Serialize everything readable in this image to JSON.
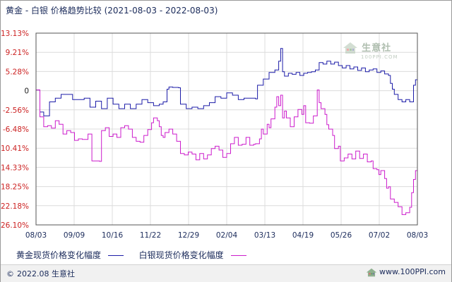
{
  "title": "黄金 - 白银 价格趋势比较 (2021-08-03 - 2022-08-03)",
  "legend": {
    "gold": "黄金现货价格变化幅度",
    "silver": "白银现货价格变化幅度"
  },
  "footer": {
    "copyright": "2022.08 生意社",
    "site": "www.100PPI.com"
  },
  "watermark": {
    "brand": "生意社",
    "url": "100PPI.COM"
  },
  "colors": {
    "gold": "#1c1ca8",
    "silver": "#cc1ccc",
    "ytick": "#cc2222",
    "zero_tick": "#222222",
    "grid": "#dcdcdc",
    "axis": "#555555"
  },
  "chart_data": {
    "type": "line",
    "x_ticks": [
      "08/03",
      "09/09",
      "10/16",
      "11/22",
      "12/29",
      "02/04",
      "03/13",
      "04/19",
      "05/26",
      "07/02",
      "08/03"
    ],
    "y_ticks": [
      "13.13%",
      "9.21%",
      "5.28%",
      "0",
      "-2.56%",
      "-6.48%",
      "-10.41%",
      "-14.33%",
      "-18.25%",
      "-22.18%",
      "-26.10%"
    ],
    "ylim": [
      -26.1,
      13.13
    ],
    "grid": true,
    "legend_position": "bottom",
    "series": [
      {
        "name": "黄金现货价格变化幅度",
        "points": [
          [
            0,
            0.2
          ],
          [
            2,
            -3.0
          ],
          [
            4,
            -3.8
          ],
          [
            7,
            -1.5
          ],
          [
            10,
            -1.0
          ],
          [
            13,
            -0.5
          ],
          [
            16,
            -0.5
          ],
          [
            19,
            -1.2
          ],
          [
            22,
            -1.2
          ],
          [
            25,
            -1.0
          ],
          [
            28,
            -2.2
          ],
          [
            31,
            -1.4
          ],
          [
            34,
            -2.4
          ],
          [
            37,
            -1.0
          ],
          [
            40,
            -1.8
          ],
          [
            43,
            -2.4
          ],
          [
            46,
            -1.8
          ],
          [
            49,
            -2.4
          ],
          [
            52,
            -1.8
          ],
          [
            55,
            -1.2
          ],
          [
            58,
            -1.6
          ],
          [
            61,
            -2.0
          ],
          [
            64,
            -1.8
          ],
          [
            66,
            -1.5
          ],
          [
            68,
            0.4
          ],
          [
            69,
            1.0
          ],
          [
            71,
            0.9
          ],
          [
            74,
            0.8
          ],
          [
            75,
            -1.8
          ],
          [
            78,
            -2.4
          ],
          [
            81,
            -2.2
          ],
          [
            84,
            -2.4
          ],
          [
            87,
            -2.0
          ],
          [
            90,
            -1.6
          ],
          [
            93,
            -0.8
          ],
          [
            96,
            -1.0
          ],
          [
            99,
            -0.3
          ],
          [
            102,
            -0.6
          ],
          [
            105,
            -1.2
          ],
          [
            108,
            -1.0
          ],
          [
            111,
            -1.0
          ],
          [
            114,
            -1.1
          ],
          [
            115,
            1.5
          ],
          [
            118,
            3.2
          ],
          [
            121,
            5.0
          ],
          [
            124,
            5.6
          ],
          [
            126,
            7.4
          ],
          [
            127,
            10.0
          ],
          [
            128,
            5.2
          ],
          [
            129,
            4.0
          ],
          [
            131,
            4.8
          ],
          [
            133,
            4.5
          ],
          [
            135,
            5.0
          ],
          [
            137,
            4.2
          ],
          [
            139,
            4.8
          ],
          [
            141,
            5.0
          ],
          [
            143,
            5.2
          ],
          [
            145,
            5.6
          ],
          [
            147,
            7.1
          ],
          [
            149,
            6.8
          ],
          [
            151,
            7.4
          ],
          [
            153,
            6.8
          ],
          [
            155,
            7.2
          ],
          [
            157,
            6.5
          ],
          [
            159,
            6.0
          ],
          [
            161,
            6.5
          ],
          [
            163,
            5.8
          ],
          [
            165,
            6.2
          ],
          [
            167,
            5.5
          ],
          [
            169,
            6.0
          ],
          [
            171,
            5.2
          ],
          [
            173,
            5.6
          ],
          [
            175,
            5.8
          ],
          [
            177,
            5.0
          ],
          [
            179,
            5.4
          ],
          [
            181,
            4.6
          ],
          [
            183,
            4.2
          ],
          [
            184,
            2.0
          ],
          [
            185,
            0.4
          ],
          [
            186,
            -0.5
          ],
          [
            188,
            -1.2
          ],
          [
            190,
            -1.5
          ],
          [
            192,
            -1.2
          ],
          [
            194,
            -1.5
          ],
          [
            196,
            1.5
          ],
          [
            197,
            3.0
          ],
          [
            198,
            1.7
          ]
        ]
      },
      {
        "name": "白银现货价格变化幅度",
        "points": [
          [
            0,
            0.2
          ],
          [
            2,
            -4.0
          ],
          [
            4,
            -6.0
          ],
          [
            6,
            -5.8
          ],
          [
            8,
            -6.3
          ],
          [
            10,
            -4.8
          ],
          [
            12,
            -5.5
          ],
          [
            14,
            -7.5
          ],
          [
            16,
            -6.8
          ],
          [
            18,
            -7.2
          ],
          [
            20,
            -8.8
          ],
          [
            22,
            -8.5
          ],
          [
            24,
            -8.6
          ],
          [
            27,
            -7.5
          ],
          [
            29,
            -13.0
          ],
          [
            31,
            -13.0
          ],
          [
            33,
            -13.1
          ],
          [
            34,
            -6.8
          ],
          [
            36,
            -6.2
          ],
          [
            38,
            -8.0
          ],
          [
            40,
            -7.5
          ],
          [
            42,
            -8.2
          ],
          [
            44,
            -6.2
          ],
          [
            46,
            -5.8
          ],
          [
            48,
            -6.5
          ],
          [
            50,
            -8.2
          ],
          [
            52,
            -9.0
          ],
          [
            54,
            -9.2
          ],
          [
            56,
            -7.8
          ],
          [
            58,
            -6.6
          ],
          [
            60,
            -5.2
          ],
          [
            61,
            -4.2
          ],
          [
            63,
            -4.8
          ],
          [
            64,
            -6.0
          ],
          [
            65,
            -7.8
          ],
          [
            66,
            -8.2
          ],
          [
            67,
            -7.2
          ],
          [
            69,
            -6.5
          ],
          [
            71,
            -7.5
          ],
          [
            73,
            -9.0
          ],
          [
            75,
            -11.5
          ],
          [
            77,
            -11.8
          ],
          [
            79,
            -11.2
          ],
          [
            81,
            -11.6
          ],
          [
            83,
            -12.8
          ],
          [
            85,
            -11.5
          ],
          [
            87,
            -12.6
          ],
          [
            89,
            -11.8
          ],
          [
            91,
            -10.5
          ],
          [
            93,
            -10.0
          ],
          [
            95,
            -10.8
          ],
          [
            97,
            -12.3
          ],
          [
            99,
            -11.5
          ],
          [
            101,
            -9.5
          ],
          [
            103,
            -8.2
          ],
          [
            105,
            -9.8
          ],
          [
            107,
            -9.6
          ],
          [
            109,
            -8.2
          ],
          [
            111,
            -9.8
          ],
          [
            113,
            -9.6
          ],
          [
            114,
            -9.5
          ],
          [
            116,
            -8.5
          ],
          [
            117,
            -6.5
          ],
          [
            118,
            -7.5
          ],
          [
            120,
            -5.5
          ],
          [
            121,
            -6.2
          ],
          [
            122,
            -4.4
          ],
          [
            124,
            -2.2
          ],
          [
            125,
            -0.8
          ],
          [
            126,
            -2.0
          ],
          [
            127,
            -0.6
          ],
          [
            128,
            -4.2
          ],
          [
            129,
            -2.8
          ],
          [
            130,
            -4.2
          ],
          [
            132,
            -6.0
          ],
          [
            134,
            -4.0
          ],
          [
            136,
            -2.5
          ],
          [
            138,
            -3.5
          ],
          [
            139,
            -2.0
          ],
          [
            140,
            -5.2
          ],
          [
            142,
            -5.3
          ],
          [
            144,
            -3.8
          ],
          [
            146,
            0.2
          ],
          [
            147,
            -1.6
          ],
          [
            148,
            -2.4
          ],
          [
            150,
            -3.5
          ],
          [
            151,
            -5.6
          ],
          [
            152,
            -6.5
          ],
          [
            154,
            -7.8
          ],
          [
            155,
            -10.5
          ],
          [
            157,
            -10.0
          ],
          [
            158,
            -13.0
          ],
          [
            160,
            -12.4
          ],
          [
            162,
            -11.6
          ],
          [
            164,
            -12.6
          ],
          [
            166,
            -11.0
          ],
          [
            168,
            -12.5
          ],
          [
            170,
            -11.6
          ],
          [
            172,
            -13.2
          ],
          [
            174,
            -13.0
          ],
          [
            175,
            -14.6
          ],
          [
            177,
            -14.8
          ],
          [
            178,
            -15.8
          ],
          [
            179,
            -15.0
          ],
          [
            181,
            -16.6
          ],
          [
            182,
            -18.6
          ],
          [
            183,
            -18.3
          ],
          [
            184,
            -20.8
          ],
          [
            186,
            -21.5
          ],
          [
            188,
            -22.4
          ],
          [
            190,
            -24.0
          ],
          [
            192,
            -23.6
          ],
          [
            194,
            -22.5
          ],
          [
            195,
            -19.5
          ],
          [
            196,
            -16.8
          ],
          [
            197,
            -15.0
          ],
          [
            198,
            -17.5
          ]
        ]
      }
    ]
  }
}
